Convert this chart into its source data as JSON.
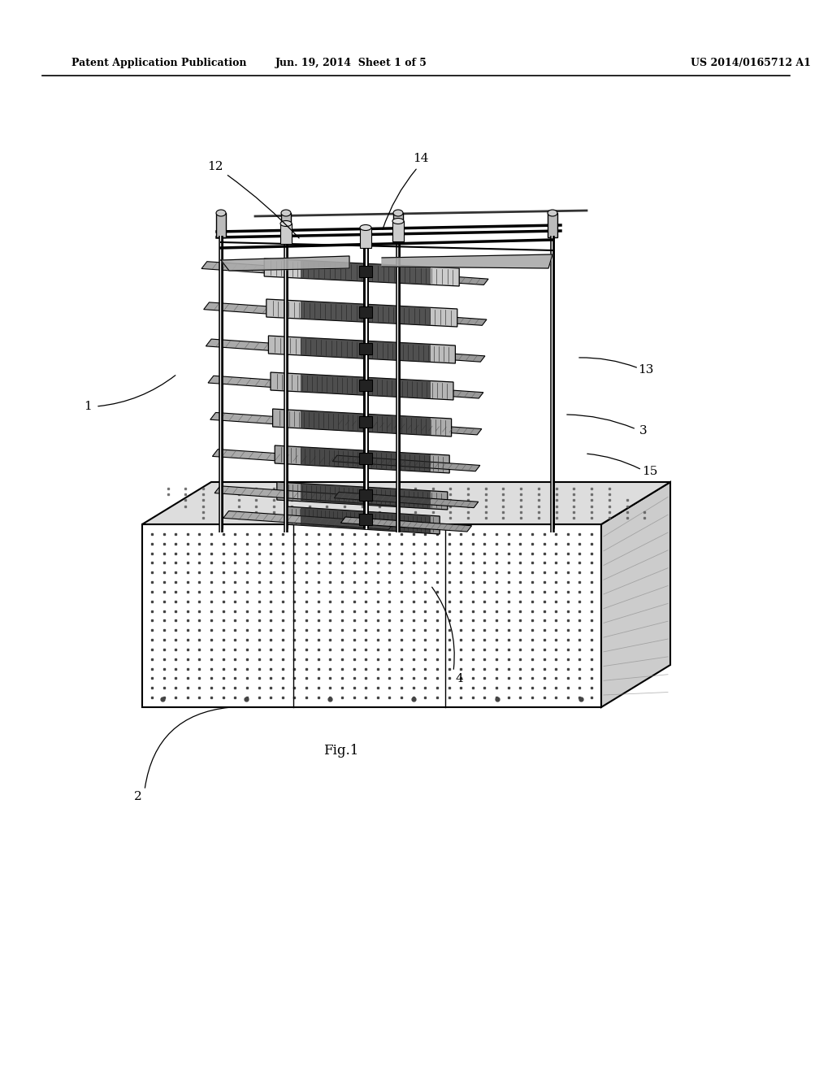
{
  "background_color": "#ffffff",
  "header_left": "Patent Application Publication",
  "header_center": "Jun. 19, 2014  Sheet 1 of 5",
  "header_right": "US 2014/0165712 A1",
  "figure_label": "Fig.1",
  "header_fontsize": 9,
  "label_fontsize": 11
}
